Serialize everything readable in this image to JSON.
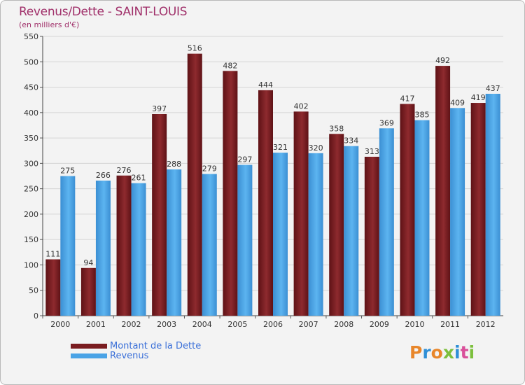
{
  "chart_data": {
    "type": "bar",
    "title": "Revenus/Dette - SAINT-LOUIS",
    "subtitle": "(en milliers d'€)",
    "categories": [
      "2000",
      "2001",
      "2002",
      "2003",
      "2004",
      "2005",
      "2006",
      "2007",
      "2008",
      "2009",
      "2010",
      "2011",
      "2012"
    ],
    "series": [
      {
        "name": "Montant de la Dette",
        "color": "#7a1c20",
        "values": [
          111,
          94,
          276,
          397,
          516,
          482,
          444,
          402,
          358,
          313,
          417,
          492,
          419
        ]
      },
      {
        "name": "Revenus",
        "color": "#4aa3e6",
        "values": [
          275,
          266,
          261,
          288,
          279,
          297,
          321,
          320,
          334,
          369,
          385,
          409,
          437
        ]
      }
    ],
    "ylim": [
      0,
      550
    ],
    "yticks": [
      0,
      50,
      100,
      150,
      200,
      250,
      300,
      350,
      400,
      450,
      500,
      550
    ],
    "grid": true,
    "legend_position": "bottom-left"
  },
  "logo": {
    "text": "Proxiti",
    "colors": [
      "#e8862a",
      "#2f8fd6",
      "#e8862a",
      "#7cbf3c",
      "#2f8fd6",
      "#d94f9a",
      "#7cbf3c"
    ]
  }
}
